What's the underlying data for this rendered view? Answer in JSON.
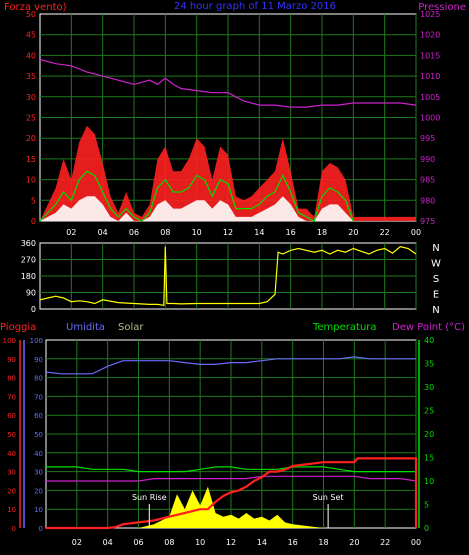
{
  "chart_data": [
    {
      "type": "line",
      "title": "24 hour graph of 11 Marzo 2016",
      "left_label": "Forza vento)",
      "right_label": "Pressione",
      "ylim_left": [
        0,
        50
      ],
      "yticks_left": [
        "0",
        "5",
        "10",
        "15",
        "20",
        "25",
        "30",
        "35",
        "40",
        "45",
        "50"
      ],
      "ylim_right": [
        975,
        1025
      ],
      "yticks_right": [
        "975",
        "980",
        "985",
        "990",
        "995",
        "1000",
        "1005",
        "1010",
        "1015",
        "1020",
        "1025"
      ],
      "xticks": [
        "02",
        "04",
        "06",
        "08",
        "10",
        "12",
        "14",
        "16",
        "18",
        "20",
        "22",
        "00"
      ],
      "colors": {
        "gust": "#ff2020",
        "wind": "#00dd00",
        "avg": "#ffffff",
        "pressure": "#cc22cc",
        "grid": "#1e7a1e",
        "left_text": "#ff2222",
        "right_text": "#cc22cc",
        "title": "#3333ff",
        "axis": "#ffffff"
      },
      "series": [
        {
          "key": "pressure",
          "x": [
            0.0,
            1,
            2,
            3,
            4,
            5,
            6,
            7,
            7.5,
            8,
            8.5,
            9,
            10,
            11,
            12,
            13,
            14,
            15,
            16,
            17,
            18,
            19,
            20,
            21,
            22,
            23,
            24
          ],
          "y": [
            1014,
            1013,
            1012.5,
            1011,
            1010,
            1009,
            1008,
            1009,
            1008,
            1009.5,
            1008,
            1007,
            1006.5,
            1006,
            1006,
            1004,
            1003,
            1003,
            1002.5,
            1002.5,
            1003,
            1003,
            1003.5,
            1003.5,
            1003.5,
            1003.5,
            1003
          ]
        },
        {
          "key": "gust",
          "x": [
            0,
            1,
            1.5,
            2,
            2.5,
            3,
            3.5,
            4,
            4.5,
            5,
            5.5,
            6,
            6.5,
            7,
            7.5,
            8,
            8.5,
            9,
            9.5,
            10,
            10.5,
            11,
            11.5,
            12,
            12.5,
            13,
            13.5,
            14,
            14.5,
            15,
            15.5,
            16,
            16.5,
            17,
            17.5,
            18,
            18.5,
            19,
            19.5,
            20,
            21,
            22,
            23,
            24
          ],
          "y": [
            0,
            8,
            15,
            10,
            19,
            23,
            21,
            14,
            6,
            2,
            7,
            2,
            1,
            4,
            15,
            18,
            12,
            12,
            15,
            20,
            18,
            10,
            18,
            16,
            6,
            5,
            6,
            8,
            10,
            12,
            20,
            12,
            3,
            3,
            1,
            12,
            14,
            13,
            10,
            1,
            1,
            1,
            1,
            1
          ]
        },
        {
          "key": "wind",
          "x": [
            0,
            1,
            1.5,
            2,
            2.5,
            3,
            3.5,
            4,
            4.5,
            5,
            5.5,
            6,
            6.5,
            7,
            7.5,
            8,
            8.5,
            9,
            9.5,
            10,
            10.5,
            11,
            11.5,
            12,
            12.5,
            13,
            13.5,
            14,
            14.5,
            15,
            15.5,
            16,
            16.5,
            17,
            17.5,
            18,
            18.5,
            19,
            19.5,
            20
          ],
          "y": [
            0,
            4,
            7,
            5,
            10,
            12,
            11,
            7,
            3,
            1,
            3,
            1,
            0,
            2,
            8,
            10,
            7,
            7,
            8,
            11,
            10,
            6,
            10,
            9,
            3,
            3,
            3,
            4,
            6,
            7,
            11,
            7,
            2,
            1,
            0,
            6,
            8,
            7,
            5,
            0
          ]
        },
        {
          "key": "avg",
          "x": [
            0,
            1,
            1.5,
            2,
            2.5,
            3,
            3.5,
            4,
            4.5,
            5,
            5.5,
            6,
            6.5,
            7,
            7.5,
            8,
            8.5,
            9,
            9.5,
            10,
            10.5,
            11,
            11.5,
            12,
            12.5,
            13,
            13.5,
            14,
            14.5,
            15,
            15.5,
            16,
            16.5,
            17,
            17.5,
            18,
            18.5,
            19,
            19.5,
            20
          ],
          "y": [
            0,
            2,
            4,
            3,
            5,
            6,
            6,
            4,
            1,
            0,
            2,
            0,
            0,
            1,
            4,
            5,
            3,
            3,
            4,
            5,
            5,
            3,
            5,
            4,
            1,
            1,
            1,
            2,
            3,
            4,
            6,
            4,
            1,
            0,
            0,
            3,
            4,
            4,
            2,
            0
          ]
        }
      ]
    },
    {
      "type": "scatter",
      "title": "",
      "ylim": [
        0,
        360
      ],
      "yticks": [
        "0",
        "90",
        "180",
        "270",
        "360"
      ],
      "right_labels": [
        "N",
        "W",
        "S",
        "E",
        "N"
      ],
      "xticks": [
        "02",
        "04",
        "06",
        "08",
        "10",
        "12",
        "14",
        "16",
        "18",
        "20",
        "22",
        "00"
      ],
      "colors": {
        "direction": "#ffff00",
        "grid": "#1e7a1e",
        "axis": "#ffffff"
      },
      "series": [
        {
          "key": "direction",
          "x": [
            0,
            0.5,
            1,
            1.5,
            2,
            2.5,
            3,
            3.5,
            4,
            5,
            6,
            7,
            7.5,
            7.9,
            8,
            8.1,
            8.5,
            9,
            10,
            11,
            12,
            13,
            14,
            14.5,
            15,
            15.2,
            15.5,
            16,
            16.5,
            17,
            17.5,
            18,
            18.5,
            19,
            19.5,
            20,
            20.5,
            21,
            21.5,
            22,
            22.5,
            23,
            23.5,
            24
          ],
          "y": [
            50,
            60,
            70,
            60,
            40,
            45,
            40,
            30,
            50,
            35,
            30,
            25,
            25,
            20,
            340,
            30,
            30,
            28,
            30,
            30,
            30,
            30,
            30,
            40,
            80,
            310,
            300,
            320,
            330,
            320,
            310,
            320,
            300,
            320,
            310,
            330,
            315,
            300,
            320,
            330,
            305,
            340,
            330,
            300
          ]
        }
      ]
    },
    {
      "type": "line",
      "title": "",
      "labels": {
        "rain": "Pioggia",
        "humidity": "Umidita",
        "solar": "Solar",
        "temperature": "Temperatura",
        "dewpoint": "Dew Point (°C)"
      },
      "ylim_left": [
        0,
        100
      ],
      "yticks_left": [
        "0",
        "10",
        "20",
        "30",
        "40",
        "50",
        "60",
        "70",
        "80",
        "90",
        "100"
      ],
      "ylim_right": [
        0,
        40
      ],
      "yticks_right": [
        "0",
        "5",
        "10",
        "15",
        "20",
        "25",
        "30",
        "35",
        "40"
      ],
      "xticks": [
        "02",
        "04",
        "06",
        "08",
        "10",
        "12",
        "14",
        "16",
        "18",
        "20",
        "22",
        "00"
      ],
      "annotations": [
        {
          "text": "Sun Rise",
          "x": 6.7
        },
        {
          "text": "Sun Set",
          "x": 18.3
        }
      ],
      "colors": {
        "rain": "#ff2020",
        "humidity": "#6a6aff",
        "solar": "#ffff00",
        "temperature": "#00dd00",
        "dewpoint": "#cc22cc",
        "grid": "#1e7a1e",
        "axis": "#ffffff",
        "solar_text": "#bbbb88"
      },
      "series": [
        {
          "key": "humidity",
          "x": [
            0,
            1,
            2,
            3,
            4,
            5,
            6,
            7,
            8,
            9,
            10,
            11,
            12,
            13,
            14,
            15,
            16,
            17,
            18,
            19,
            20,
            21,
            22,
            23,
            24
          ],
          "y": [
            83,
            82,
            82,
            82,
            86,
            89,
            89,
            89,
            89,
            88,
            87,
            87,
            88,
            88,
            89,
            90,
            90,
            90,
            90,
            90,
            91,
            90,
            90,
            90,
            90
          ]
        },
        {
          "key": "temperature",
          "x": [
            0,
            1,
            2,
            3,
            4,
            5,
            6,
            7,
            8,
            9,
            10,
            11,
            12,
            13,
            14,
            15,
            16,
            17,
            18,
            19,
            20,
            21,
            22,
            23,
            24
          ],
          "y": [
            13,
            13,
            13,
            12.5,
            12.5,
            12.5,
            12,
            12,
            12,
            12,
            12.5,
            13,
            13,
            12.5,
            12.5,
            12.5,
            13,
            13,
            13,
            12.5,
            12,
            12,
            12,
            12,
            12
          ]
        },
        {
          "key": "dewpoint",
          "x": [
            0,
            1,
            2,
            3,
            4,
            5,
            6,
            7,
            8,
            9,
            10,
            11,
            12,
            13,
            14,
            15,
            16,
            17,
            18,
            19,
            20,
            21,
            22,
            23,
            24
          ],
          "y": [
            10,
            10,
            10,
            10,
            10,
            10,
            10,
            10.5,
            10.5,
            10.5,
            10.5,
            10.5,
            10.5,
            10.5,
            11,
            11,
            11,
            11,
            11,
            11,
            11,
            10.5,
            10.5,
            10.5,
            10
          ]
        },
        {
          "key": "rain",
          "x": [
            0,
            1,
            2,
            3,
            4,
            4.5,
            5,
            6,
            7,
            8,
            9,
            10,
            10.5,
            11,
            11.5,
            12,
            12.5,
            13,
            13.5,
            14,
            14.5,
            15,
            15.5,
            16,
            17,
            18,
            19,
            19.5,
            20,
            20.2,
            21,
            22,
            23,
            24,
            24
          ],
          "y": [
            0,
            0,
            0,
            0,
            0,
            0.5,
            2,
            3,
            4,
            6,
            8,
            10,
            10,
            14,
            17,
            19,
            20,
            22,
            25,
            27,
            30,
            30,
            31,
            33,
            34,
            35,
            35,
            35,
            35,
            37,
            37,
            37,
            37,
            37,
            0
          ]
        },
        {
          "key": "solar",
          "x": [
            6,
            7,
            8,
            8.5,
            9,
            9.5,
            10,
            10.5,
            11,
            11.5,
            12,
            12.5,
            13,
            13.5,
            14,
            14.5,
            15,
            15.5,
            16,
            17,
            18
          ],
          "y": [
            0,
            2,
            6,
            18,
            10,
            20,
            12,
            22,
            8,
            6,
            7,
            5,
            8,
            5,
            6,
            4,
            7,
            3,
            2,
            1,
            0
          ]
        }
      ]
    }
  ]
}
